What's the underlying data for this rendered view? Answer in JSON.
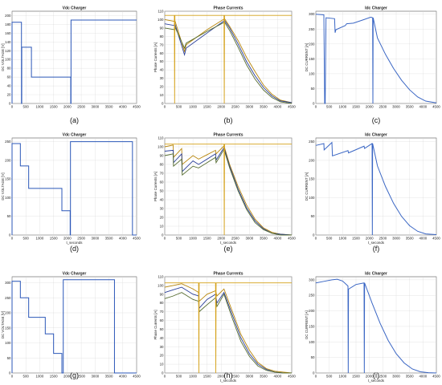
{
  "colors": {
    "volt": "#2b57b8",
    "idc": "#3a66c4",
    "phase": [
      "#b8860b",
      "#2a3f9a",
      "#556b2f",
      "#d4a017"
    ]
  },
  "chart_data": [
    {
      "type": "line",
      "title": "Vdc Charger",
      "ylabel": "DC VOLTAGE [V]",
      "xlabel": "",
      "panel": "(a)",
      "xlim": [
        0,
        4500
      ],
      "ylim": [
        0,
        210
      ],
      "xticks": [
        0,
        500,
        1000,
        1500,
        2000,
        2500,
        3000,
        3500,
        4000,
        4500
      ],
      "yticks": [
        0,
        20,
        40,
        60,
        80,
        100,
        120,
        140,
        160,
        180,
        200
      ],
      "series": [
        {
          "x": [
            0,
            0,
            340,
            340,
            350,
            350,
            700,
            700,
            2120,
            2120,
            2130,
            2130,
            4500,
            4500
          ],
          "y": [
            0,
            185,
            185,
            0,
            0,
            128,
            128,
            60,
            60,
            0,
            0,
            190,
            190,
            190
          ]
        }
      ]
    },
    {
      "type": "line",
      "title": "Phase Currents",
      "ylabel": "Phase Currents [A]",
      "xlabel": "",
      "panel": "(b)",
      "xlim": [
        0,
        4500
      ],
      "ylim": [
        0,
        110
      ],
      "xticks": [
        0,
        500,
        1000,
        1500,
        2000,
        2500,
        3000,
        3500,
        4000,
        4500
      ],
      "yticks": [
        0,
        10,
        20,
        30,
        40,
        50,
        60,
        70,
        80,
        90,
        100,
        110
      ],
      "series": [
        {
          "x": [
            0,
            340,
            350,
            700,
            760,
            1500,
            2120,
            2300,
            2600,
            2900,
            3200,
            3500,
            3800,
            4100,
            4500
          ],
          "y": [
            100,
            98,
            100,
            62,
            70,
            88,
            101,
            92,
            75,
            55,
            38,
            22,
            11,
            4,
            1
          ]
        },
        {
          "x": [
            0,
            340,
            350,
            700,
            760,
            1500,
            2120,
            2300,
            2600,
            2900,
            3200,
            3500,
            3800,
            4100,
            4500
          ],
          "y": [
            95,
            93,
            96,
            58,
            66,
            84,
            99,
            90,
            71,
            50,
            33,
            19,
            9,
            3,
            1
          ]
        },
        {
          "x": [
            0,
            340,
            350,
            700,
            760,
            1500,
            2120,
            2300,
            2600,
            2900,
            3200,
            3500,
            3800,
            4100,
            4500
          ],
          "y": [
            90,
            88,
            92,
            66,
            72,
            86,
            97,
            87,
            67,
            46,
            29,
            16,
            7,
            2,
            0
          ]
        },
        {
          "x": [
            0,
            340,
            350,
            360,
            370,
            2100,
            2110,
            2120,
            2130,
            4500
          ],
          "y": [
            105,
            105,
            0,
            105,
            105,
            105,
            0,
            105,
            105,
            105
          ]
        }
      ]
    },
    {
      "type": "line",
      "title": "Idc Charger",
      "ylabel": "DC CURRENT [A]",
      "xlabel": "",
      "panel": "(c)",
      "xlim": [
        0,
        4500
      ],
      "ylim": [
        0,
        310
      ],
      "xticks": [
        0,
        500,
        1000,
        1500,
        2000,
        2500,
        3000,
        3500,
        4000,
        4500
      ],
      "yticks": [
        0,
        50,
        100,
        150,
        200,
        250,
        300
      ],
      "series": [
        {
          "x": [
            0,
            300,
            330,
            350,
            380,
            700,
            720,
            750,
            1100,
            1150,
            1400,
            1800,
            2050,
            2120,
            2130,
            2140,
            2300,
            2600,
            2900,
            3200,
            3500,
            3800,
            4100,
            4500
          ],
          "y": [
            300,
            298,
            0,
            0,
            288,
            285,
            238,
            248,
            262,
            268,
            270,
            282,
            290,
            288,
            0,
            288,
            220,
            165,
            118,
            78,
            46,
            22,
            8,
            2
          ]
        }
      ]
    },
    {
      "type": "line",
      "title": "Vdc Charger",
      "ylabel": "DC VOLTAGE [V]",
      "xlabel": "t_seconds",
      "panel": "(d)",
      "xlim": [
        0,
        4500
      ],
      "ylim": [
        0,
        260
      ],
      "xticks": [
        0,
        500,
        1000,
        1500,
        2000,
        2500,
        3000,
        3500,
        4000,
        4500
      ],
      "yticks": [
        0,
        50,
        100,
        150,
        200,
        250
      ],
      "series": [
        {
          "x": [
            0,
            0,
            300,
            300,
            600,
            600,
            1800,
            1800,
            2100,
            2100,
            2110,
            2110,
            4350,
            4350,
            4500
          ],
          "y": [
            0,
            245,
            245,
            185,
            185,
            125,
            125,
            65,
            65,
            0,
            0,
            250,
            250,
            0,
            0
          ]
        }
      ]
    },
    {
      "type": "line",
      "title": "Phase Currents",
      "ylabel": "Phase Currents [A]",
      "xlabel": "t_seconds",
      "panel": "(e)",
      "xlim": [
        0,
        4500
      ],
      "ylim": [
        0,
        110
      ],
      "xticks": [
        0,
        500,
        1000,
        1500,
        2000,
        2500,
        3000,
        3500,
        4000,
        4500
      ],
      "yticks": [
        0,
        10,
        20,
        30,
        40,
        50,
        60,
        70,
        80,
        90,
        100,
        110
      ],
      "series": [
        {
          "x": [
            0,
            300,
            310,
            600,
            620,
            1000,
            1200,
            1800,
            1820,
            2100,
            2300,
            2600,
            2900,
            3200,
            3500,
            3800,
            4100,
            4500
          ],
          "y": [
            100,
            102,
            88,
            98,
            80,
            90,
            86,
            96,
            92,
            101,
            80,
            55,
            34,
            18,
            8,
            3,
            1,
            0
          ]
        },
        {
          "x": [
            0,
            300,
            310,
            600,
            620,
            1000,
            1200,
            1800,
            1820,
            2100,
            2300,
            2600,
            2900,
            3200,
            3500,
            3800,
            4100,
            4500
          ],
          "y": [
            95,
            96,
            82,
            92,
            72,
            84,
            80,
            92,
            85,
            99,
            78,
            52,
            31,
            16,
            7,
            2,
            1,
            0
          ]
        },
        {
          "x": [
            0,
            300,
            310,
            600,
            620,
            1000,
            1200,
            1800,
            1820,
            2100,
            2300,
            2600,
            2900,
            3200,
            3500,
            3800,
            4100,
            4500
          ],
          "y": [
            90,
            92,
            78,
            86,
            68,
            78,
            76,
            88,
            82,
            97,
            76,
            50,
            29,
            14,
            6,
            2,
            0,
            0
          ]
        },
        {
          "x": [
            0,
            2100,
            2110,
            2120,
            4500
          ],
          "y": [
            103,
            103,
            0,
            103,
            103
          ]
        }
      ]
    },
    {
      "type": "line",
      "title": "Idc Charger",
      "ylabel": "DC CURRENT [A]",
      "xlabel": "t_seconds",
      "panel": "(f)",
      "xlim": [
        0,
        4500
      ],
      "ylim": [
        0,
        260
      ],
      "xticks": [
        0,
        500,
        1000,
        1500,
        2000,
        2500,
        3000,
        3500,
        4000,
        4500
      ],
      "yticks": [
        0,
        50,
        100,
        150,
        200,
        250
      ],
      "series": [
        {
          "x": [
            0,
            300,
            310,
            600,
            620,
            1200,
            1220,
            1800,
            1820,
            2100,
            2110,
            2120,
            2300,
            2600,
            2900,
            3200,
            3500,
            3800,
            4100,
            4500
          ],
          "y": [
            240,
            245,
            228,
            248,
            212,
            226,
            220,
            238,
            232,
            245,
            0,
            245,
            185,
            130,
            85,
            50,
            25,
            10,
            3,
            1
          ]
        }
      ]
    },
    {
      "type": "line",
      "title": "Vdc Charger",
      "ylabel": "DC VOLTAGE [V]",
      "xlabel": "",
      "panel": "(g)",
      "xlim": [
        0,
        4500
      ],
      "ylim": [
        0,
        320
      ],
      "xticks": [
        0,
        500,
        1000,
        1500,
        2000,
        2500,
        3000,
        3500,
        4000,
        4500
      ],
      "yticks": [
        0,
        50,
        100,
        150,
        200,
        250,
        300
      ],
      "series": [
        {
          "x": [
            0,
            0,
            300,
            300,
            600,
            600,
            1200,
            1200,
            1500,
            1500,
            1800,
            1800,
            1850,
            1850,
            3700,
            3700,
            4500
          ],
          "y": [
            0,
            305,
            305,
            250,
            250,
            185,
            185,
            130,
            130,
            65,
            65,
            0,
            0,
            310,
            310,
            0,
            0
          ]
        }
      ]
    },
    {
      "type": "line",
      "title": "Phase Currents",
      "ylabel": "Phase Currents [A]",
      "xlabel": "t_seconds",
      "panel": "(h)",
      "xlim": [
        0,
        4500
      ],
      "ylim": [
        0,
        110
      ],
      "xticks": [
        0,
        500,
        1000,
        1500,
        2000,
        2500,
        3000,
        3500,
        4000,
        4500
      ],
      "yticks": [
        0,
        10,
        20,
        30,
        40,
        50,
        60,
        70,
        80,
        90,
        100,
        110
      ],
      "series": [
        {
          "x": [
            0,
            300,
            600,
            1000,
            1200,
            1220,
            1500,
            1800,
            1850,
            2100,
            2400,
            2700,
            3000,
            3300,
            3600,
            3900,
            4200,
            4500
          ],
          "y": [
            98,
            100,
            102,
            96,
            92,
            82,
            90,
            94,
            88,
            96,
            70,
            44,
            26,
            12,
            5,
            2,
            1,
            0
          ]
        },
        {
          "x": [
            0,
            300,
            600,
            1000,
            1200,
            1220,
            1500,
            1800,
            1850,
            2100,
            2400,
            2700,
            3000,
            3300,
            3600,
            3900,
            4200,
            4500
          ],
          "y": [
            92,
            95,
            98,
            90,
            88,
            74,
            84,
            90,
            80,
            92,
            66,
            40,
            22,
            10,
            4,
            1,
            0,
            0
          ]
        },
        {
          "x": [
            0,
            300,
            600,
            1000,
            1200,
            1220,
            1500,
            1800,
            1850,
            2100,
            2400,
            2700,
            3000,
            3300,
            3600,
            3900,
            4200,
            4500
          ],
          "y": [
            85,
            88,
            92,
            84,
            82,
            70,
            78,
            86,
            76,
            90,
            62,
            36,
            19,
            8,
            3,
            1,
            0,
            0
          ]
        },
        {
          "x": [
            0,
            1200,
            1210,
            1220,
            1800,
            1810,
            1820,
            4500
          ],
          "y": [
            103,
            103,
            0,
            103,
            103,
            0,
            103,
            103
          ]
        }
      ]
    },
    {
      "type": "line",
      "title": "Idc Charger",
      "ylabel": "DC CURRENT [A]",
      "xlabel": "t_seconds",
      "panel": "(i)",
      "xlim": [
        0,
        4500
      ],
      "ylim": [
        0,
        310
      ],
      "xticks": [
        0,
        500,
        1000,
        1500,
        2000,
        2500,
        3000,
        3500,
        4000,
        4500
      ],
      "yticks": [
        0,
        50,
        100,
        150,
        200,
        250,
        300
      ],
      "series": [
        {
          "x": [
            0,
            300,
            600,
            800,
            1000,
            1200,
            1210,
            1220,
            1500,
            1800,
            1810,
            1820,
            2100,
            2400,
            2700,
            3000,
            3300,
            3600,
            3900,
            4200,
            4500
          ],
          "y": [
            290,
            295,
            300,
            302,
            296,
            280,
            0,
            270,
            285,
            290,
            0,
            290,
            225,
            160,
            105,
            62,
            32,
            13,
            4,
            1,
            0
          ]
        }
      ]
    }
  ]
}
